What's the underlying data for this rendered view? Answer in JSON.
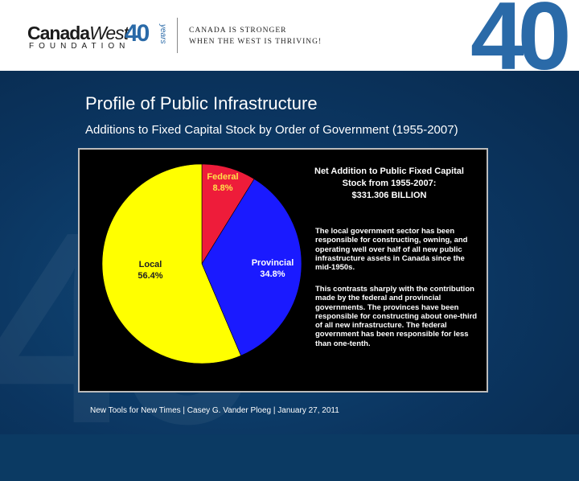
{
  "header": {
    "logo_canada": "Canada",
    "logo_west": "West",
    "logo_foundation": "FOUNDATION",
    "logo_40": "40",
    "logo_years": "years",
    "tagline_line1": "CANADA IS STRONGER",
    "tagline_line2": "WHEN THE WEST IS THRIVING!",
    "big_40": "40"
  },
  "slide": {
    "title": "Profile of Public Infrastructure",
    "subtitle": "Additions to Fixed Capital Stock by Order of Government (1955-2007)"
  },
  "chart_data": {
    "type": "pie",
    "slices": [
      {
        "name": "Federal",
        "value": 8.8,
        "label": "8.8%",
        "color": "#ee1c3a"
      },
      {
        "name": "Provincial",
        "value": 34.8,
        "label": "34.8%",
        "color": "#1a1aff"
      },
      {
        "name": "Local",
        "value": 56.4,
        "label": "56.4%",
        "color": "#ffff00"
      }
    ],
    "annotation_title_line1": "Net Addition to Public Fixed Capital",
    "annotation_title_line2": "Stock from 1955-2007:",
    "annotation_title_line3": "$331.306 BILLION",
    "paragraph1": "The local government sector has been responsible for constructing, owning, and operating well over half of all new public infrastructure assets in Canada since the mid-1950s.",
    "paragraph2": "This contrasts sharply with the contribution made by the federal and provincial governments. The provinces have been responsible for constructing about one-third of all new infrastructure. The federal government has been responsible for less than one-tenth."
  },
  "footer": {
    "text": "New Tools for New Times  |  Casey G. Vander Ploeg  |  January 27, 2011"
  }
}
